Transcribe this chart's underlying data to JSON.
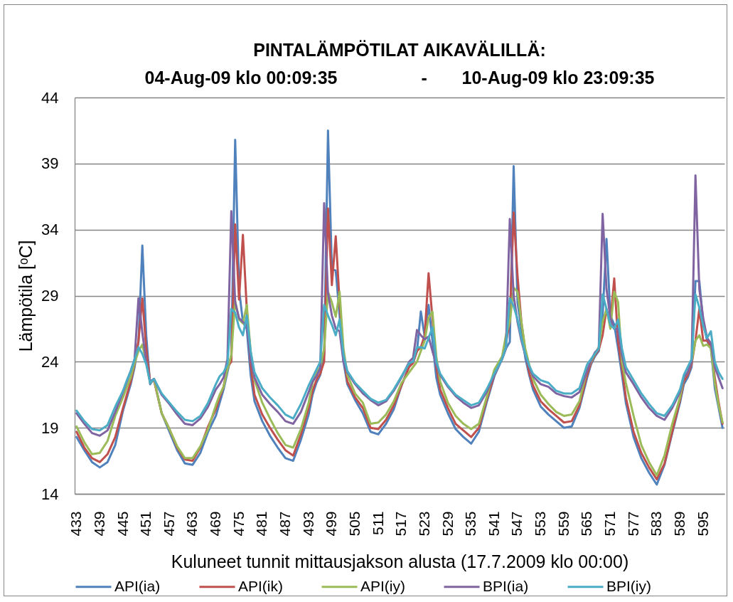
{
  "chart_data": {
    "type": "line",
    "title": "PINTALÄMPÖTILAT AIKAVÄLILLÄ:",
    "subtitle": "04-Aug-09 klo 00:09:35                 -       10-Aug-09 klo 23:09:35",
    "xlabel": "Kuluneet tunnit mittausjakson alusta (17.7.2009 klo 00:00)",
    "ylabel": "Lämpötila [ᵒC]",
    "x": [
      433,
      435,
      437,
      439,
      441,
      443,
      445,
      446,
      447,
      448,
      449,
      450,
      451,
      452,
      453,
      455,
      457,
      459,
      461,
      463,
      465,
      467,
      469,
      470,
      471,
      472,
      473,
      474,
      475,
      476,
      477,
      478,
      479,
      481,
      483,
      485,
      487,
      489,
      491,
      493,
      494,
      495,
      496,
      497,
      498,
      499,
      500,
      501,
      502,
      503,
      505,
      507,
      509,
      511,
      513,
      515,
      517,
      519,
      520,
      521,
      522,
      523,
      524,
      525,
      526,
      527,
      529,
      531,
      533,
      535,
      537,
      539,
      541,
      543,
      544,
      545,
      546,
      547,
      548,
      549,
      550,
      551,
      553,
      555,
      557,
      559,
      561,
      563,
      565,
      566,
      567,
      568,
      569,
      570,
      571,
      572,
      573,
      574,
      575,
      577,
      579,
      581,
      583,
      585,
      587,
      589,
      590,
      591,
      592,
      593,
      594,
      595,
      596,
      597,
      598,
      599,
      600
    ],
    "series": [
      {
        "name": "API(ia)",
        "color": "#4f81bd",
        "values": [
          18.3,
          17.3,
          16.4,
          16.0,
          16.4,
          17.7,
          20.3,
          21.3,
          22.3,
          23.6,
          25.5,
          32.8,
          26.0,
          22.3,
          22.7,
          20.1,
          18.7,
          17.3,
          16.3,
          16.2,
          17.1,
          18.7,
          19.9,
          20.9,
          21.9,
          23.2,
          24.5,
          40.8,
          29.5,
          27.0,
          26.5,
          23.0,
          21.0,
          19.5,
          18.4,
          17.5,
          16.7,
          16.5,
          18.1,
          20.0,
          21.5,
          22.4,
          23.0,
          24.5,
          41.5,
          31.0,
          30.9,
          27.5,
          24.0,
          22.3,
          21.1,
          20.1,
          18.7,
          18.5,
          19.3,
          20.4,
          22.2,
          23.7,
          24.0,
          24.8,
          27.8,
          25.9,
          28.3,
          25.6,
          22.8,
          21.5,
          20.1,
          18.9,
          18.3,
          17.8,
          18.7,
          20.9,
          22.9,
          24.2,
          25.0,
          25.5,
          38.8,
          28.5,
          26.5,
          24.3,
          23.0,
          21.9,
          20.6,
          20.0,
          19.5,
          19.0,
          19.1,
          20.5,
          22.8,
          23.8,
          24.4,
          24.8,
          27.5,
          33.3,
          27.5,
          26.8,
          25.0,
          23.0,
          20.9,
          18.3,
          16.7,
          15.6,
          14.7,
          16.2,
          18.6,
          20.9,
          22.3,
          22.8,
          23.6,
          30.1,
          30.1,
          27.0,
          25.6,
          25.0,
          22.0,
          20.5,
          19.0
        ]
      },
      {
        "name": "API(ik)",
        "color": "#c0504d",
        "values": [
          18.7,
          17.5,
          16.7,
          16.4,
          17.0,
          18.3,
          20.5,
          21.5,
          22.5,
          23.8,
          25.6,
          28.8,
          25.0,
          22.5,
          22.6,
          20.1,
          18.9,
          17.5,
          16.6,
          16.5,
          17.5,
          19.1,
          20.4,
          21.3,
          22.1,
          23.6,
          24.0,
          34.4,
          28.7,
          33.6,
          28.0,
          23.8,
          21.5,
          20.0,
          19.0,
          18.1,
          17.3,
          16.9,
          18.5,
          20.5,
          21.8,
          22.6,
          23.1,
          24.0,
          35.6,
          29.8,
          33.5,
          28.5,
          24.5,
          22.5,
          21.3,
          20.5,
          19.0,
          18.9,
          19.6,
          20.7,
          22.2,
          23.6,
          23.9,
          24.8,
          25.1,
          26.0,
          30.7,
          27.3,
          23.6,
          21.9,
          20.5,
          19.3,
          18.8,
          18.3,
          19.0,
          21.1,
          23.0,
          24.3,
          25.4,
          27.0,
          35.3,
          30.5,
          27.0,
          24.8,
          23.2,
          22.2,
          21.0,
          20.4,
          19.9,
          19.4,
          19.5,
          20.7,
          23.0,
          23.9,
          24.5,
          24.9,
          26.0,
          28.0,
          27.0,
          30.3,
          25.5,
          23.5,
          21.3,
          18.7,
          17.1,
          16.0,
          15.1,
          16.3,
          18.7,
          21.1,
          22.5,
          23.0,
          23.8,
          25.6,
          28.0,
          25.6,
          25.6,
          25.2,
          22.8,
          20.9,
          19.3
        ]
      },
      {
        "name": "API(iy)",
        "color": "#9bbb59",
        "values": [
          19.1,
          17.9,
          17.0,
          17.1,
          18.0,
          19.9,
          21.3,
          22.1,
          22.8,
          23.9,
          24.8,
          25.3,
          24.0,
          22.4,
          22.7,
          20.1,
          18.9,
          17.6,
          16.7,
          16.7,
          17.6,
          18.9,
          20.7,
          21.5,
          22.1,
          23.4,
          24.5,
          28.6,
          27.2,
          26.9,
          28.3,
          24.8,
          22.6,
          20.9,
          19.7,
          18.6,
          17.7,
          17.5,
          18.9,
          20.9,
          22.4,
          23.1,
          23.6,
          25.0,
          29.3,
          28.5,
          27.4,
          29.3,
          25.0,
          23.0,
          21.6,
          20.9,
          19.3,
          19.4,
          20.0,
          21.0,
          22.4,
          23.2,
          23.6,
          24.0,
          24.8,
          25.6,
          27.3,
          27.8,
          24.4,
          22.5,
          20.9,
          19.9,
          19.3,
          18.9,
          19.3,
          21.3,
          23.4,
          24.4,
          26.0,
          27.0,
          29.6,
          29.3,
          27.0,
          25.0,
          23.8,
          22.7,
          21.5,
          20.8,
          20.2,
          19.9,
          20.0,
          21.0,
          23.4,
          24.0,
          24.6,
          25.1,
          27.0,
          28.0,
          26.5,
          29.3,
          28.5,
          24.0,
          22.4,
          19.9,
          17.7,
          16.4,
          15.4,
          16.9,
          19.3,
          21.3,
          22.8,
          23.2,
          24.0,
          25.6,
          26.0,
          25.2,
          25.3,
          25.0,
          22.4,
          20.7,
          19.4
        ]
      },
      {
        "name": "BPI(ia)",
        "color": "#8064a2",
        "values": [
          20.1,
          19.3,
          18.6,
          18.4,
          18.8,
          20.2,
          21.7,
          22.5,
          23.3,
          24.2,
          28.8,
          26.2,
          24.0,
          22.5,
          22.7,
          21.5,
          20.8,
          20.0,
          19.3,
          19.2,
          19.7,
          20.6,
          21.9,
          22.3,
          22.8,
          24.2,
          35.4,
          28.5,
          27.3,
          27.0,
          26.8,
          24.2,
          22.8,
          21.5,
          20.8,
          20.2,
          19.5,
          19.3,
          20.2,
          21.7,
          22.5,
          22.9,
          23.5,
          36.0,
          29.2,
          27.5,
          26.5,
          26.3,
          24.0,
          23.2,
          22.3,
          21.6,
          21.1,
          20.7,
          21.0,
          21.8,
          22.8,
          24.0,
          24.3,
          26.4,
          26.0,
          25.7,
          25.9,
          24.8,
          23.8,
          23.0,
          22.1,
          21.4,
          20.9,
          20.5,
          20.7,
          21.7,
          23.0,
          24.2,
          25.0,
          34.8,
          29.0,
          27.0,
          25.6,
          24.5,
          23.6,
          22.9,
          22.3,
          22.1,
          21.6,
          21.4,
          21.3,
          21.7,
          23.3,
          24.1,
          24.7,
          25.0,
          35.2,
          29.5,
          27.3,
          26.5,
          26.5,
          24.5,
          23.2,
          22.3,
          21.3,
          20.5,
          19.9,
          19.6,
          20.5,
          21.7,
          22.8,
          23.2,
          24.0,
          38.1,
          29.5,
          27.3,
          25.8,
          25.4,
          23.6,
          22.8,
          22.0
        ]
      },
      {
        "name": "BPI(iy)",
        "color": "#4bacc6",
        "values": [
          20.3,
          19.5,
          18.9,
          18.8,
          19.2,
          20.6,
          21.8,
          22.6,
          23.3,
          24.2,
          25.1,
          24.6,
          23.8,
          22.4,
          22.7,
          21.6,
          20.9,
          20.2,
          19.6,
          19.5,
          19.9,
          20.9,
          22.3,
          22.9,
          23.2,
          23.8,
          28.0,
          27.7,
          26.6,
          26.0,
          27.5,
          24.8,
          23.2,
          22.0,
          21.3,
          20.7,
          20.0,
          19.7,
          20.8,
          22.2,
          22.8,
          23.4,
          24.0,
          28.3,
          27.5,
          26.8,
          26.0,
          27.2,
          24.5,
          23.3,
          22.4,
          21.8,
          21.2,
          20.9,
          21.1,
          21.9,
          22.9,
          23.9,
          24.0,
          25.1,
          25.1,
          25.0,
          25.8,
          26.6,
          24.0,
          23.1,
          22.2,
          21.5,
          21.1,
          20.7,
          20.9,
          21.9,
          23.1,
          24.2,
          25.1,
          28.8,
          28.2,
          27.2,
          25.8,
          24.6,
          23.7,
          23.1,
          22.6,
          22.4,
          21.8,
          21.6,
          21.6,
          22.0,
          23.8,
          24.2,
          24.6,
          25.0,
          29.1,
          28.0,
          26.8,
          26.5,
          27.2,
          25.0,
          23.6,
          22.6,
          21.6,
          20.8,
          20.1,
          19.9,
          20.7,
          21.9,
          23.0,
          23.6,
          24.2,
          29.1,
          28.1,
          26.7,
          25.8,
          26.3,
          24.0,
          23.2,
          22.7
        ]
      }
    ],
    "xlim": [
      432.5,
      600.5
    ],
    "xticks": [
      433,
      439,
      445,
      451,
      457,
      463,
      469,
      475,
      481,
      487,
      493,
      499,
      505,
      511,
      517,
      523,
      529,
      535,
      541,
      547,
      553,
      559,
      565,
      571,
      577,
      583,
      589,
      595
    ],
    "ylim": [
      14,
      44
    ],
    "yticks": [
      14,
      19,
      24,
      29,
      34,
      39,
      44
    ],
    "grid": "y",
    "legend": "bottom"
  }
}
